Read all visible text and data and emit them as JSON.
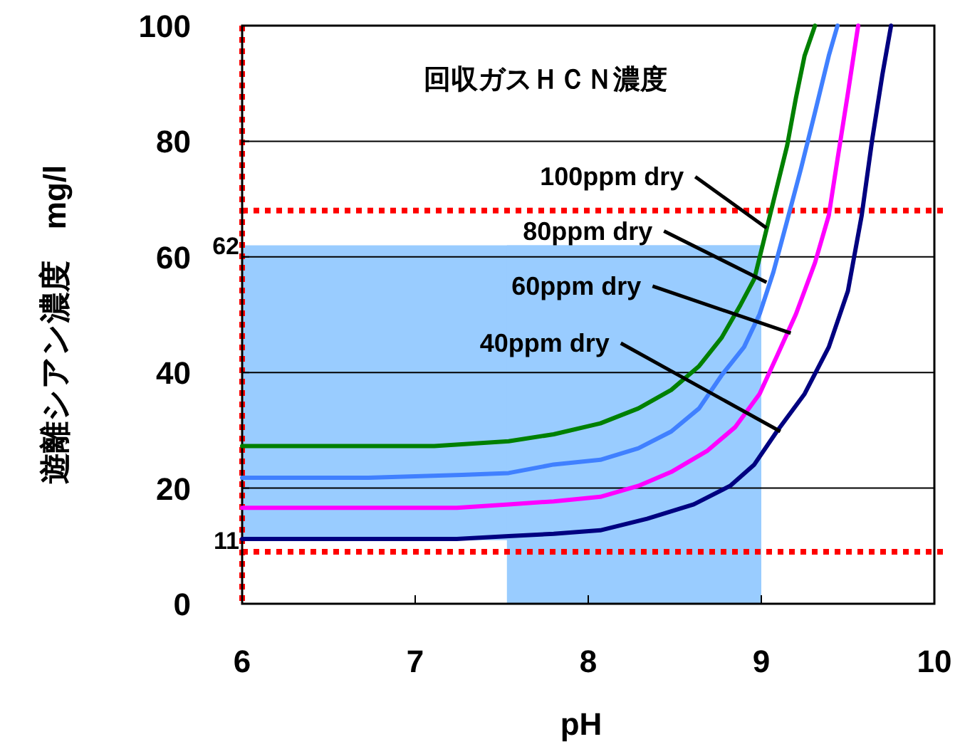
{
  "chart_data": {
    "type": "line",
    "title": "回収ガスＨＣＮ濃度",
    "xlabel": "pH",
    "ylabel": "遊離シアン濃度　mg/l",
    "xlim": [
      6,
      10
    ],
    "ylim": [
      0,
      100
    ],
    "xticks": [
      6,
      7,
      8,
      9,
      10
    ],
    "yticks": [
      0,
      20,
      40,
      60,
      80,
      100
    ],
    "grid": "y",
    "bands": [
      {
        "axis": "y",
        "from": 11,
        "to": 62,
        "color": "#99ccff"
      },
      {
        "axis": "x",
        "from": 7.53,
        "to": 9.0,
        "color": "#99ccff"
      }
    ],
    "ref_lines": [
      {
        "axis": "y",
        "value": 68,
        "color": "#ff0000",
        "line_style": "dotted"
      },
      {
        "axis": "y",
        "value": 9,
        "color": "#ff0000",
        "line_style": "dotted"
      },
      {
        "axis": "x",
        "value": 6,
        "color": "#ff0000",
        "line_style": "dotted"
      }
    ],
    "annotations": [
      {
        "text": "100ppm dry",
        "x": 9.03,
        "y": 65
      },
      {
        "text": "80ppm dry",
        "x": 9.03,
        "y": 55.6
      },
      {
        "text": "60ppm dry",
        "x": 9.17,
        "y": 46.8
      },
      {
        "text": "40ppm dry",
        "x": 9.11,
        "y": 29.8
      },
      {
        "text": "62",
        "x": 6,
        "y": 62
      },
      {
        "text": "11",
        "x": 6,
        "y": 11
      }
    ],
    "series": [
      {
        "color": "#008000",
        "x": [
          6,
          7.11,
          7.54,
          7.8,
          8.07,
          8.29,
          8.48,
          8.64,
          8.77,
          8.88,
          8.96,
          9.01,
          9.07,
          9.15,
          9.2,
          9.25,
          9.31
        ],
        "values": [
          27.3,
          27.3,
          28.1,
          29.3,
          31.2,
          33.8,
          37,
          41.1,
          46,
          51.7,
          56.2,
          62.3,
          69.6,
          79.3,
          87.5,
          94.8,
          100
        ]
      },
      {
        "color": "#4080ff",
        "x": [
          6,
          6.73,
          7.27,
          7.54,
          7.8,
          8.07,
          8.29,
          8.48,
          8.64,
          8.77,
          8.9,
          8.99,
          9.07,
          9.15,
          9.23,
          9.31,
          9.39,
          9.44
        ],
        "values": [
          21.8,
          21.8,
          22.3,
          22.6,
          24.1,
          24.9,
          26.9,
          29.8,
          33.8,
          39.5,
          44.4,
          50.1,
          57.4,
          66.3,
          75.3,
          85,
          94.8,
          100
        ]
      },
      {
        "color": "#ff00ff",
        "x": [
          6,
          7.24,
          7.54,
          7.8,
          8.07,
          8.29,
          8.48,
          8.69,
          8.85,
          8.99,
          9.09,
          9.2,
          9.31,
          9.39,
          9.44,
          9.5,
          9.56
        ],
        "values": [
          16.6,
          16.6,
          17.2,
          17.7,
          18.5,
          20.4,
          22.8,
          26.5,
          30.6,
          36.3,
          42.8,
          50.1,
          59,
          67.2,
          76.9,
          88.3,
          100
        ]
      },
      {
        "color": "#000080",
        "x": [
          6,
          7.24,
          7.54,
          7.8,
          8.07,
          8.34,
          8.61,
          8.82,
          8.96,
          9.09,
          9.25,
          9.39,
          9.5,
          9.58,
          9.64,
          9.7,
          9.75
        ],
        "values": [
          11.2,
          11.2,
          11.7,
          12.1,
          12.7,
          14.7,
          17.2,
          20.4,
          24.1,
          29.8,
          36.3,
          44.4,
          54.1,
          67.2,
          80.2,
          91.5,
          100
        ]
      }
    ]
  }
}
